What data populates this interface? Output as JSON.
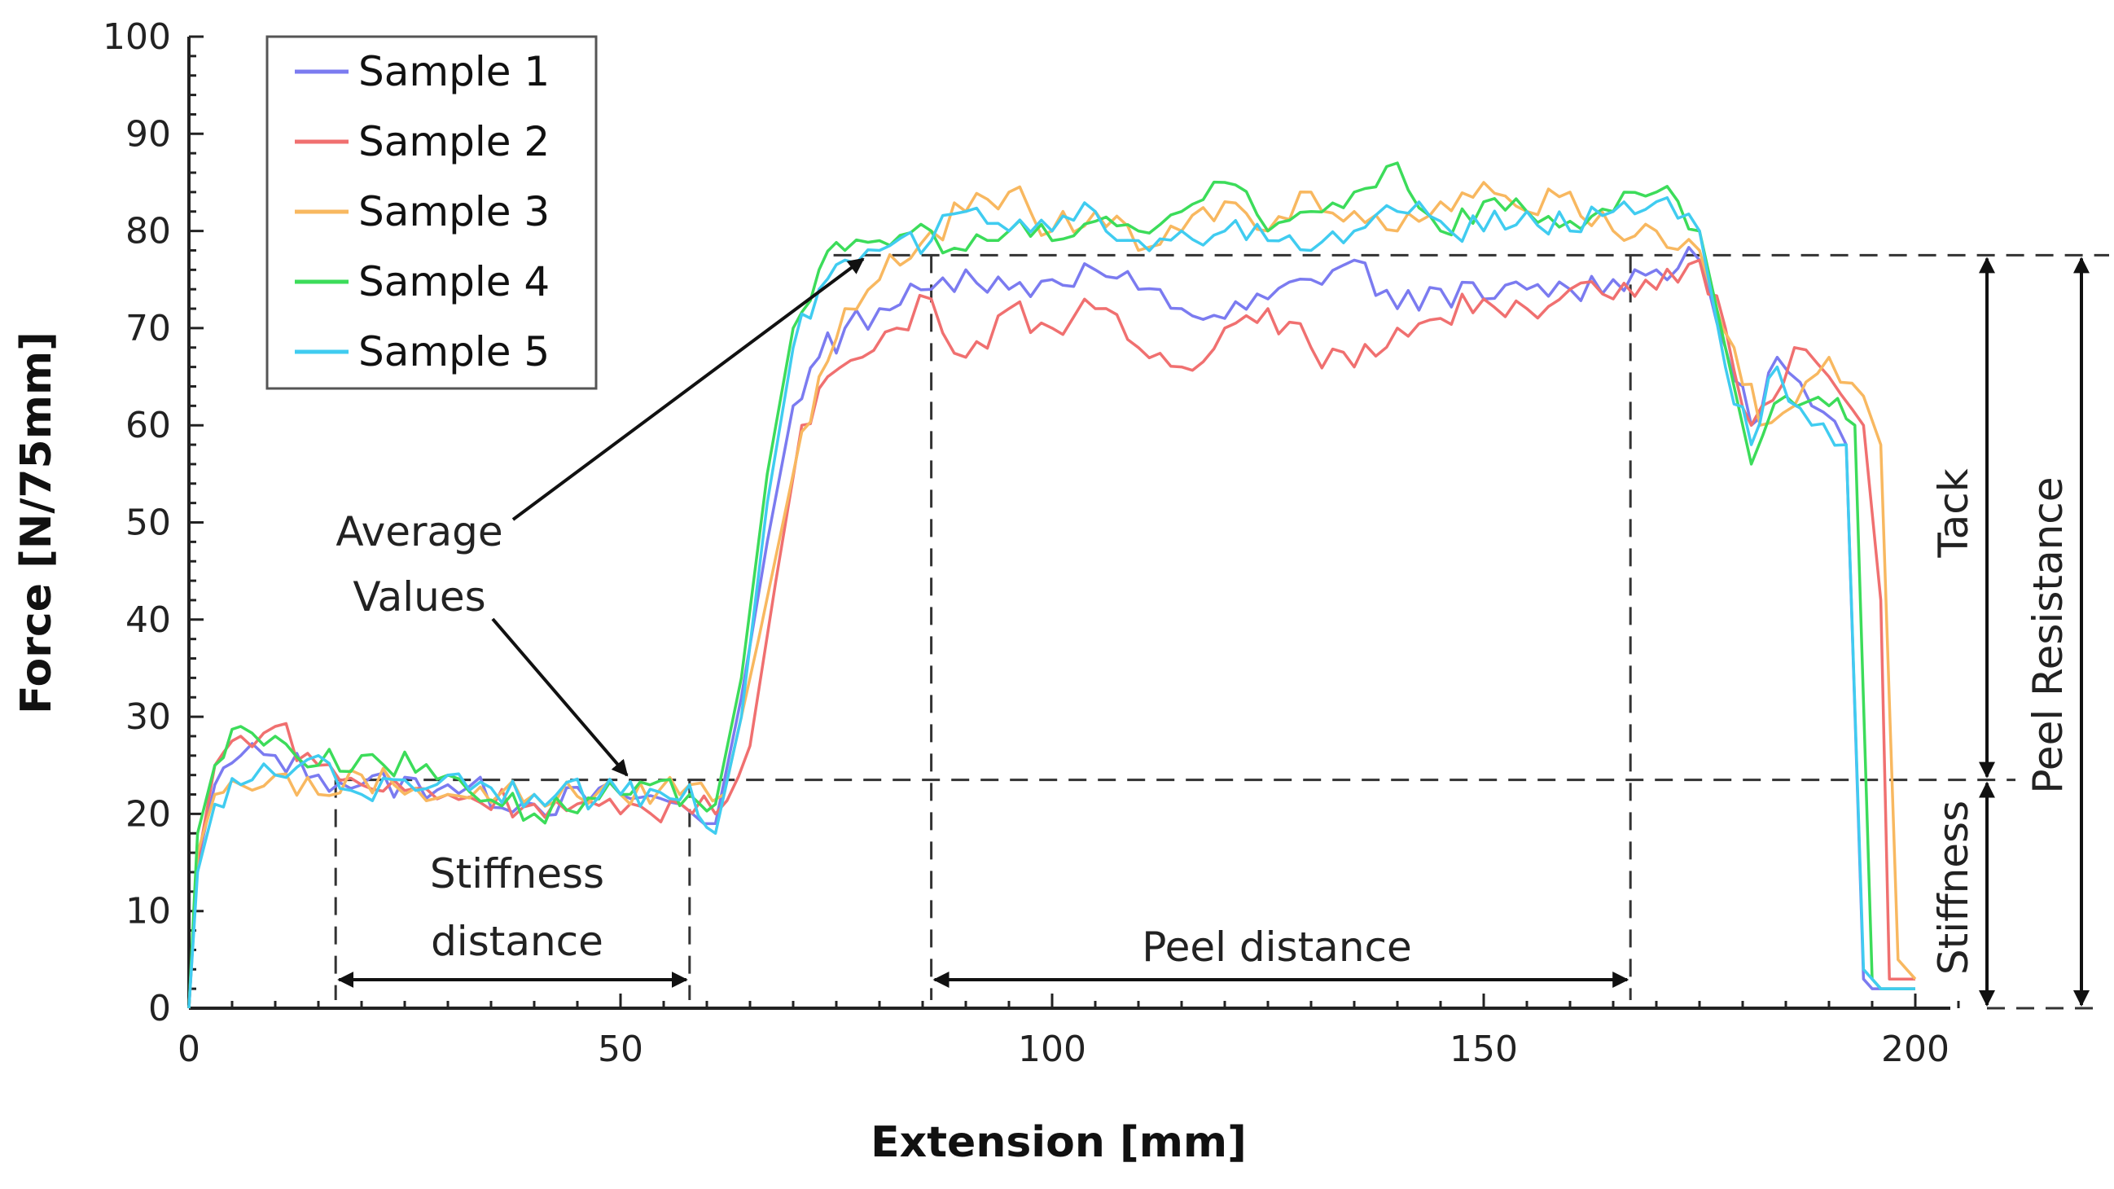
{
  "chart_data": {
    "type": "line",
    "xlabel": "Extension [mm]",
    "ylabel": "Force [N/75mm]",
    "xlim": [
      0,
      205
    ],
    "ylim": [
      0,
      100
    ],
    "xticks": [
      "0",
      "50",
      "100",
      "150",
      "200"
    ],
    "yticks": [
      "0",
      "10",
      "20",
      "30",
      "40",
      "50",
      "60",
      "70",
      "80",
      "90",
      "100"
    ],
    "legend_position": "top-left",
    "series": [
      {
        "name": "Sample 1",
        "color": "#7b7bf0",
        "x": [
          0,
          1,
          3,
          6,
          10,
          15,
          20,
          30,
          40,
          50,
          57,
          61,
          64,
          67,
          70,
          73,
          76,
          80,
          86,
          90,
          95,
          100,
          105,
          110,
          115,
          120,
          125,
          130,
          135,
          140,
          145,
          150,
          155,
          160,
          165,
          170,
          175,
          178,
          181,
          184,
          188,
          192,
          194,
          195,
          200
        ],
        "y": [
          0,
          15,
          23,
          26,
          26,
          24,
          23,
          23,
          21,
          22,
          21,
          19,
          32,
          48,
          62,
          67,
          70,
          72,
          74,
          76,
          74,
          75,
          76,
          74,
          72,
          71,
          73,
          75,
          77,
          72,
          74,
          73,
          74,
          74,
          75,
          76,
          77,
          68,
          60,
          67,
          62,
          58,
          3,
          2,
          2
        ]
      },
      {
        "name": "Sample 2",
        "color": "#f07070",
        "x": [
          0,
          1,
          3,
          6,
          10,
          15,
          20,
          30,
          40,
          50,
          57,
          61,
          65,
          68,
          71,
          74,
          78,
          82,
          86,
          90,
          95,
          100,
          105,
          110,
          115,
          120,
          125,
          130,
          135,
          140,
          145,
          150,
          155,
          160,
          165,
          170,
          175,
          178,
          181,
          186,
          190,
          194,
          196,
          197,
          200
        ],
        "y": [
          0,
          15,
          25,
          28,
          29,
          25,
          23,
          22,
          21,
          20,
          21,
          20,
          27,
          44,
          60,
          65,
          67,
          70,
          73,
          67,
          72,
          70,
          72,
          68,
          66,
          70,
          72,
          68,
          66,
          70,
          71,
          73,
          72,
          74,
          73,
          74,
          77,
          70,
          60,
          68,
          65,
          60,
          42,
          3,
          3
        ]
      },
      {
        "name": "Sample 3",
        "color": "#f8b860",
        "x": [
          0,
          1,
          3,
          6,
          10,
          15,
          20,
          30,
          40,
          50,
          58,
          62,
          66,
          70,
          73,
          76,
          80,
          86,
          90,
          95,
          100,
          105,
          110,
          115,
          120,
          125,
          130,
          135,
          140,
          145,
          150,
          155,
          160,
          165,
          170,
          175,
          179,
          182,
          186,
          190,
          194,
          196,
          198,
          200
        ],
        "y": [
          0,
          16,
          22,
          23,
          24,
          22,
          24,
          22,
          22,
          22,
          23,
          22,
          38,
          55,
          65,
          72,
          75,
          80,
          82,
          84,
          80,
          82,
          78,
          80,
          83,
          80,
          84,
          82,
          80,
          83,
          85,
          82,
          84,
          80,
          80,
          78,
          68,
          60,
          62,
          67,
          63,
          58,
          5,
          3
        ]
      },
      {
        "name": "Sample 4",
        "color": "#3cdc5a",
        "x": [
          0,
          1,
          3,
          6,
          10,
          15,
          20,
          30,
          40,
          50,
          58,
          61,
          64,
          67,
          70,
          73,
          76,
          80,
          86,
          90,
          95,
          100,
          105,
          110,
          115,
          120,
          125,
          130,
          135,
          140,
          145,
          150,
          155,
          160,
          165,
          170,
          175,
          178,
          181,
          185,
          190,
          193,
          195,
          196,
          200
        ],
        "y": [
          0,
          18,
          25,
          29,
          28,
          25,
          26,
          24,
          20,
          22,
          22,
          21,
          34,
          55,
          70,
          76,
          78,
          79,
          80,
          78,
          80,
          79,
          81,
          80,
          82,
          85,
          80,
          82,
          84,
          87,
          80,
          83,
          82,
          81,
          82,
          84,
          80,
          68,
          56,
          63,
          62,
          60,
          3,
          2,
          2
        ]
      },
      {
        "name": "Sample 5",
        "color": "#40ccf0",
        "x": [
          0,
          1,
          3,
          6,
          10,
          15,
          20,
          30,
          40,
          50,
          58,
          61,
          64,
          67,
          70,
          73,
          76,
          80,
          86,
          90,
          95,
          100,
          105,
          110,
          115,
          120,
          125,
          130,
          135,
          140,
          145,
          150,
          155,
          160,
          165,
          170,
          175,
          178,
          181,
          184,
          188,
          192,
          194,
          196,
          200
        ],
        "y": [
          0,
          14,
          21,
          23,
          24,
          26,
          22,
          24,
          22,
          22,
          23,
          18,
          30,
          52,
          68,
          74,
          77,
          78,
          79,
          82,
          80,
          80,
          82,
          79,
          80,
          80,
          79,
          78,
          80,
          82,
          81,
          80,
          82,
          80,
          82,
          83,
          80,
          66,
          58,
          66,
          60,
          58,
          4,
          2,
          2
        ]
      }
    ],
    "reference_lines": {
      "stiffness_force": 23.5,
      "peel_force": 77.5,
      "stiffness_start": 17,
      "stiffness_end": 58,
      "peel_start": 86,
      "peel_end": 167
    },
    "annotations": {
      "average_values": [
        "Average",
        "Values"
      ],
      "stiffness_distance": [
        "Stiffness",
        "distance"
      ],
      "peel_distance": "Peel distance",
      "tack": "Tack",
      "stiffness": "Stiffness",
      "peel_resistance": "Peel Resistance"
    }
  }
}
